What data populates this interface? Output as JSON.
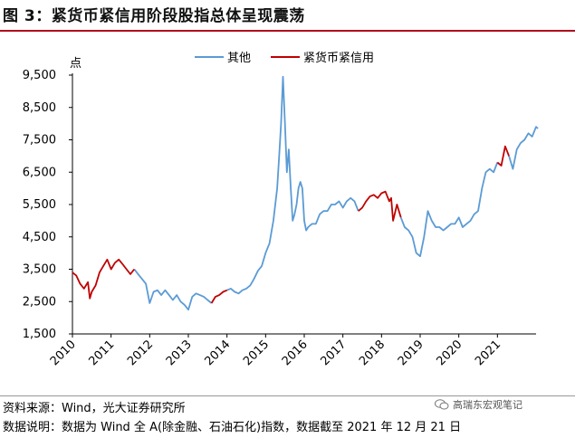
{
  "figure": {
    "title": "图 3：紧货币紧信用阶段股指总体呈现震荡",
    "source": "资料来源：Wind，光大证券研究所",
    "note": "数据说明：数据为 Wind 全 A(除金融、石油石化)指数，数据截至 2021 年 12 月 21 日",
    "watermark": "高瑞东宏观笔记",
    "watermark_icon": "wechat-icon"
  },
  "colors": {
    "other": "#5b9bd5",
    "tight": "#c00000",
    "title_rule": "#b0071d"
  },
  "chart_data": {
    "type": "line",
    "ylabel": "点",
    "ylim": [
      1500,
      9500
    ],
    "yticks": [
      "9,500",
      "8,500",
      "7,500",
      "6,500",
      "5,500",
      "4,500",
      "3,500",
      "2,500",
      "1,500"
    ],
    "ytick_values": [
      9500,
      8500,
      7500,
      6500,
      5500,
      4500,
      3500,
      2500,
      1500
    ],
    "xticks": [
      "2010",
      "2011",
      "2012",
      "2013",
      "2014",
      "2015",
      "2016",
      "2017",
      "2018",
      "2019",
      "2020",
      "2021"
    ],
    "xtick_values": [
      2010,
      2011,
      2012,
      2013,
      2014,
      2015,
      2016,
      2017,
      2018,
      2019,
      2020,
      2021
    ],
    "xlim": [
      2010,
      2022
    ],
    "legend_position": "top-center",
    "grid": false,
    "series": [
      {
        "name": "其他",
        "color": "#5b9bd5",
        "points": [
          [
            2011.6,
            3500
          ],
          [
            2011.7,
            3350
          ],
          [
            2011.8,
            3200
          ],
          [
            2011.9,
            3050
          ],
          [
            2012.0,
            2450
          ],
          [
            2012.1,
            2800
          ],
          [
            2012.2,
            2850
          ],
          [
            2012.3,
            2700
          ],
          [
            2012.4,
            2850
          ],
          [
            2012.5,
            2700
          ],
          [
            2012.6,
            2550
          ],
          [
            2012.7,
            2700
          ],
          [
            2012.8,
            2500
          ],
          [
            2012.9,
            2400
          ],
          [
            2013.0,
            2250
          ],
          [
            2013.1,
            2650
          ],
          [
            2013.2,
            2750
          ],
          [
            2013.3,
            2700
          ],
          [
            2013.4,
            2650
          ],
          [
            2013.5,
            2550
          ],
          [
            2013.6,
            2450
          ]
        ]
      },
      {
        "name": "其他",
        "color": "#5b9bd5",
        "points": [
          [
            2014.0,
            2850
          ],
          [
            2014.1,
            2900
          ],
          [
            2014.2,
            2800
          ],
          [
            2014.3,
            2750
          ],
          [
            2014.4,
            2850
          ],
          [
            2014.5,
            2900
          ],
          [
            2014.6,
            3000
          ],
          [
            2014.7,
            3200
          ],
          [
            2014.8,
            3450
          ],
          [
            2014.9,
            3600
          ],
          [
            2015.0,
            4000
          ],
          [
            2015.1,
            4300
          ],
          [
            2015.2,
            5000
          ],
          [
            2015.3,
            6000
          ],
          [
            2015.35,
            7000
          ],
          [
            2015.4,
            8000
          ],
          [
            2015.45,
            9450
          ],
          [
            2015.5,
            8000
          ],
          [
            2015.55,
            6500
          ],
          [
            2015.6,
            7200
          ],
          [
            2015.65,
            6000
          ],
          [
            2015.7,
            5000
          ],
          [
            2015.75,
            5200
          ],
          [
            2015.8,
            5500
          ],
          [
            2015.85,
            6000
          ],
          [
            2015.9,
            6200
          ],
          [
            2015.95,
            6000
          ],
          [
            2016.0,
            5000
          ],
          [
            2016.05,
            4700
          ],
          [
            2016.1,
            4800
          ],
          [
            2016.2,
            4900
          ],
          [
            2016.3,
            4900
          ],
          [
            2016.4,
            5200
          ],
          [
            2016.5,
            5300
          ],
          [
            2016.6,
            5300
          ],
          [
            2016.7,
            5500
          ],
          [
            2016.8,
            5500
          ],
          [
            2016.9,
            5600
          ],
          [
            2017.0,
            5400
          ],
          [
            2017.1,
            5600
          ],
          [
            2017.2,
            5700
          ],
          [
            2017.3,
            5600
          ],
          [
            2017.4,
            5300
          ]
        ]
      },
      {
        "name": "其他",
        "color": "#5b9bd5",
        "points": [
          [
            2018.5,
            5100
          ],
          [
            2018.6,
            4800
          ],
          [
            2018.7,
            4700
          ],
          [
            2018.8,
            4500
          ],
          [
            2018.9,
            4000
          ],
          [
            2019.0,
            3900
          ],
          [
            2019.1,
            4500
          ],
          [
            2019.2,
            5300
          ],
          [
            2019.3,
            5000
          ],
          [
            2019.4,
            4800
          ],
          [
            2019.5,
            4800
          ],
          [
            2019.6,
            4700
          ],
          [
            2019.7,
            4800
          ],
          [
            2019.8,
            4900
          ],
          [
            2019.9,
            4900
          ],
          [
            2020.0,
            5100
          ],
          [
            2020.1,
            4800
          ],
          [
            2020.2,
            4900
          ],
          [
            2020.3,
            5000
          ],
          [
            2020.4,
            5200
          ],
          [
            2020.5,
            5300
          ],
          [
            2020.6,
            6000
          ],
          [
            2020.7,
            6500
          ],
          [
            2020.8,
            6600
          ],
          [
            2020.9,
            6500
          ],
          [
            2021.0,
            6800
          ]
        ]
      },
      {
        "name": "其他",
        "color": "#5b9bd5",
        "points": [
          [
            2021.3,
            7000
          ],
          [
            2021.4,
            6600
          ],
          [
            2021.5,
            7200
          ],
          [
            2021.6,
            7400
          ],
          [
            2021.7,
            7500
          ],
          [
            2021.8,
            7700
          ],
          [
            2021.9,
            7600
          ],
          [
            2022.0,
            7900
          ],
          [
            2022.05,
            7850
          ]
        ]
      },
      {
        "name": "紧货币紧信用",
        "color": "#c00000",
        "points": [
          [
            2010.0,
            3400
          ],
          [
            2010.1,
            3300
          ],
          [
            2010.2,
            3050
          ],
          [
            2010.3,
            2900
          ],
          [
            2010.4,
            3100
          ],
          [
            2010.45,
            2600
          ],
          [
            2010.5,
            2800
          ],
          [
            2010.6,
            3000
          ],
          [
            2010.7,
            3400
          ],
          [
            2010.8,
            3600
          ],
          [
            2010.9,
            3800
          ],
          [
            2011.0,
            3500
          ],
          [
            2011.1,
            3700
          ],
          [
            2011.2,
            3800
          ],
          [
            2011.3,
            3650
          ],
          [
            2011.4,
            3500
          ],
          [
            2011.5,
            3350
          ],
          [
            2011.6,
            3500
          ]
        ]
      },
      {
        "name": "紧货币紧信用",
        "color": "#c00000",
        "points": [
          [
            2013.6,
            2450
          ],
          [
            2013.7,
            2650
          ],
          [
            2013.8,
            2700
          ],
          [
            2013.9,
            2800
          ],
          [
            2014.0,
            2850
          ]
        ]
      },
      {
        "name": "紧货币紧信用",
        "color": "#c00000",
        "points": [
          [
            2017.4,
            5300
          ],
          [
            2017.5,
            5400
          ],
          [
            2017.6,
            5600
          ],
          [
            2017.7,
            5750
          ],
          [
            2017.8,
            5800
          ],
          [
            2017.9,
            5700
          ],
          [
            2018.0,
            5850
          ],
          [
            2018.1,
            5900
          ],
          [
            2018.2,
            5600
          ],
          [
            2018.25,
            5700
          ],
          [
            2018.3,
            5000
          ],
          [
            2018.4,
            5500
          ],
          [
            2018.5,
            5100
          ]
        ]
      },
      {
        "name": "紧货币紧信用",
        "color": "#c00000",
        "points": [
          [
            2021.0,
            6800
          ],
          [
            2021.1,
            6700
          ],
          [
            2021.2,
            7300
          ],
          [
            2021.3,
            7000
          ]
        ]
      }
    ],
    "legend": [
      {
        "label": "其他",
        "color": "#5b9bd5"
      },
      {
        "label": "紧货币紧信用",
        "color": "#c00000"
      }
    ]
  }
}
